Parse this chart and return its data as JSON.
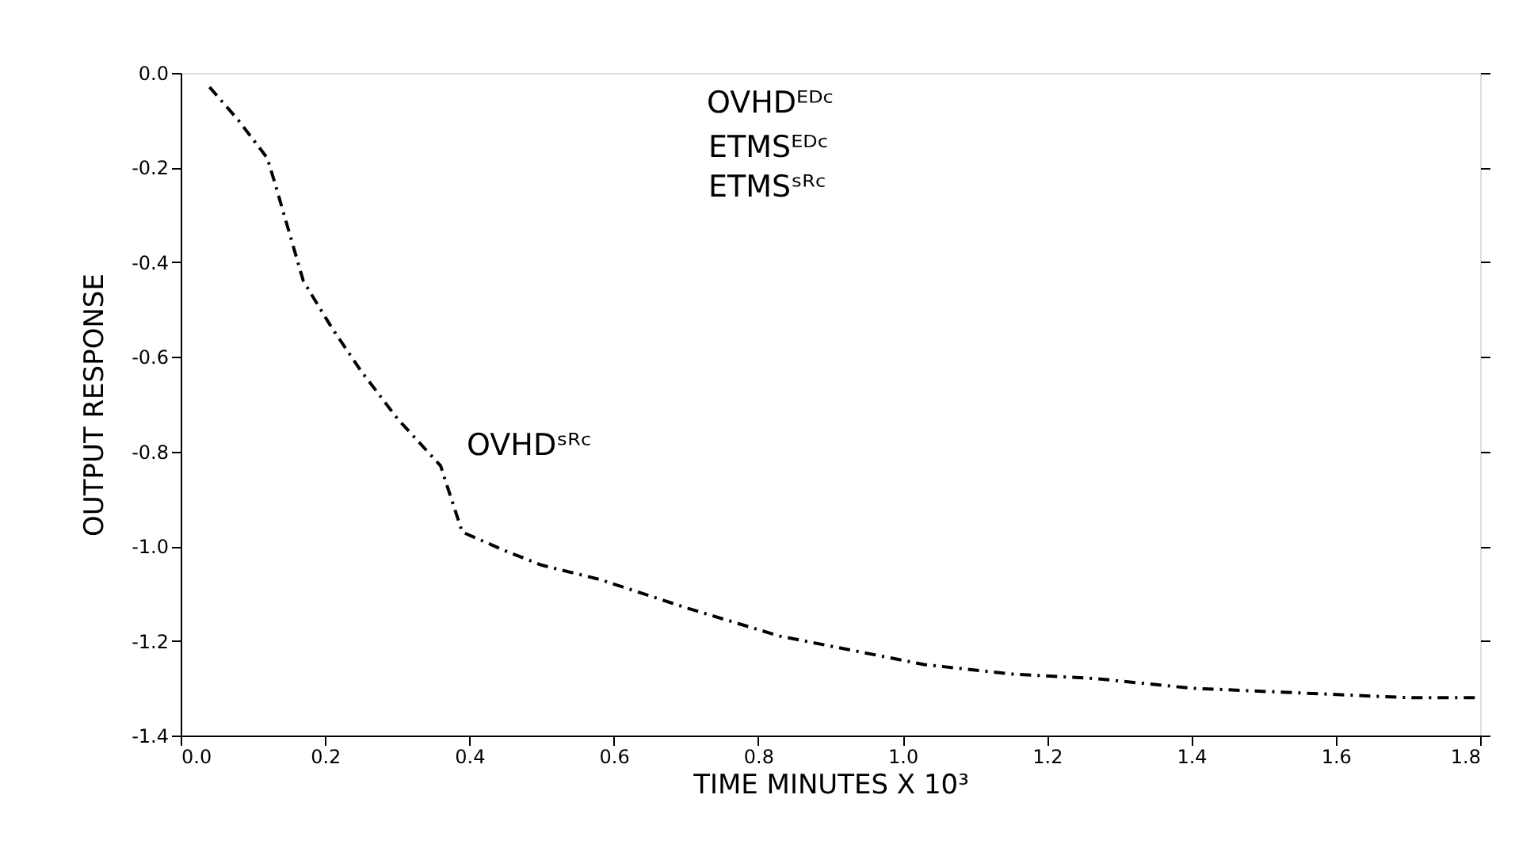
{
  "chart_data": {
    "type": "line",
    "xlabel": "TIME   MINUTES X 10³",
    "ylabel": "OUTPUT RESPONSE",
    "series": [
      {
        "color": "#000000",
        "x": [
          0.04,
          0.08,
          0.12,
          0.13,
          0.17,
          0.21,
          0.25,
          0.3,
          0.36,
          0.39,
          0.45,
          0.5,
          0.58,
          0.7,
          0.83,
          0.93,
          1.03,
          1.15,
          1.27,
          1.4,
          1.55,
          1.7,
          1.8
        ],
        "values": [
          -0.03,
          -0.1,
          -0.18,
          -0.23,
          -0.44,
          -0.54,
          -0.63,
          -0.73,
          -0.83,
          -0.97,
          -1.01,
          -1.04,
          -1.07,
          -1.13,
          -1.19,
          -1.22,
          -1.25,
          -1.27,
          -1.28,
          -1.3,
          -1.31,
          -1.32,
          -1.32
        ]
      }
    ],
    "xlim": [
      0,
      1.8
    ],
    "xticks": [
      {
        "value": 0,
        "label": "0.0"
      },
      0.2,
      0.4,
      0.6,
      0.8,
      {
        "value": 1,
        "label": "1.0"
      },
      1.2,
      1.4,
      1.6,
      1.8
    ],
    "ylim": [
      -1.4,
      0
    ],
    "yticks": [
      -1.4,
      -1.2,
      {
        "value": -1,
        "label": "-1.0"
      },
      -0.8,
      -0.6,
      -0.4,
      -0.2,
      {
        "value": 0,
        "label": "0.0"
      }
    ],
    "grid": false,
    "marker": "none",
    "line_style": "dashed",
    "annotations": [
      "OVHDᴱᴰᶜ",
      "ETMSᴱᴰᶜ",
      "ETMSˢᴿᶜ",
      {
        "text": "OVHDˢᴿᶜ",
        "x": 0.37,
        "y": -0.83
      }
    ]
  }
}
